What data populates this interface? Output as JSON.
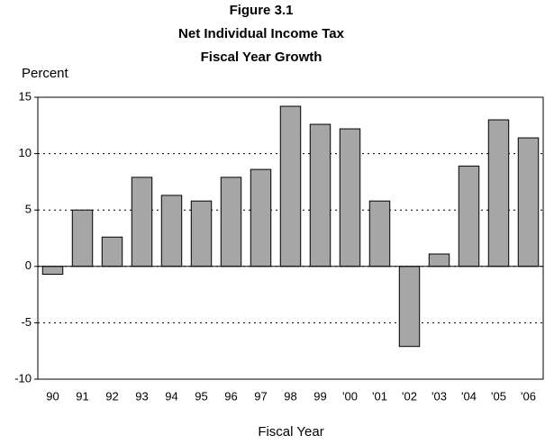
{
  "chart_data": {
    "type": "bar",
    "title_lines": [
      "Figure 3.1",
      "Net  Individual Income Tax",
      "Fiscal Year Growth"
    ],
    "y_axis_label": "Percent",
    "x_axis_label": "Fiscal Year",
    "categories": [
      "90",
      "91",
      "92",
      "93",
      "94",
      "95",
      "96",
      "97",
      "98",
      "99",
      "'00",
      "'01",
      "'02",
      "'03",
      "'04",
      "'05",
      "'06"
    ],
    "values": [
      -0.7,
      5.0,
      2.6,
      7.9,
      6.3,
      5.8,
      7.9,
      8.6,
      14.2,
      12.6,
      12.2,
      5.8,
      -7.1,
      1.1,
      8.9,
      13.0,
      11.4
    ],
    "color": "#a6a6a6",
    "ylim": [
      -10,
      15
    ],
    "yticks": [
      -10,
      -5,
      0,
      5,
      10,
      15
    ],
    "grid": true
  }
}
